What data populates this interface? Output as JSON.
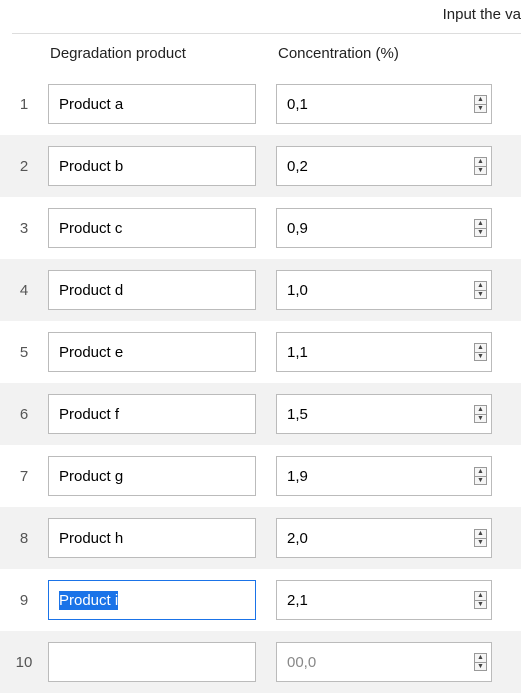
{
  "caption": "Input the va",
  "headers": {
    "product": "Degradation product",
    "concentration": "Concentration (%)"
  },
  "rows": [
    {
      "n": "1",
      "product": "Product a",
      "conc": "0,1"
    },
    {
      "n": "2",
      "product": "Product b",
      "conc": "0,2"
    },
    {
      "n": "3",
      "product": "Product c",
      "conc": "0,9"
    },
    {
      "n": "4",
      "product": "Product d",
      "conc": "1,0"
    },
    {
      "n": "5",
      "product": "Product e",
      "conc": "1,1"
    },
    {
      "n": "6",
      "product": "Product f",
      "conc": "1,5"
    },
    {
      "n": "7",
      "product": "Product g",
      "conc": "1,9"
    },
    {
      "n": "8",
      "product": "Product h",
      "conc": "2,0"
    },
    {
      "n": "9",
      "product": "Product i",
      "conc": "2,1",
      "focused": true,
      "selected": true
    },
    {
      "n": "10",
      "product": "",
      "conc": "00,0",
      "placeholder_conc": true
    }
  ],
  "colors": {
    "accent": "#1a73e8",
    "row_alt": "#f2f2f2",
    "border": "#bbbbbb"
  }
}
